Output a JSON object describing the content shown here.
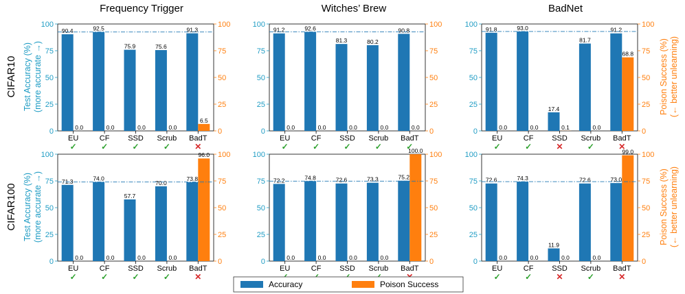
{
  "columns": [
    "Frequency Trigger",
    "Witches’ Brew",
    "BadNet"
  ],
  "rows": [
    "CIFAR10",
    "CIFAR100"
  ],
  "left_axis_label": [
    "Test Accuracy (%)",
    "(more accurate →)"
  ],
  "right_axis_label": [
    "Poison Success (%)",
    "(← better unlearning)"
  ],
  "legend": [
    "Accuracy",
    "Poison Success"
  ],
  "colors": {
    "accuracy": "#1f77b4",
    "poison": "#ff7f0e",
    "accent_axis": "#1f9cc4",
    "check": "#2ca02c",
    "cross": "#d62728"
  },
  "chart_data": [
    {
      "type": "bar",
      "title": "Frequency Trigger",
      "row": "CIFAR10",
      "categories": [
        "EU",
        "CF",
        "SSD",
        "Scrub",
        "BadT"
      ],
      "series": [
        {
          "name": "Accuracy",
          "values": [
            90.4,
            92.5,
            75.9,
            75.6,
            91.3
          ]
        },
        {
          "name": "Poison Success",
          "values": [
            0.0,
            0.0,
            0.0,
            0.0,
            6.5
          ]
        }
      ],
      "status": [
        "check",
        "check",
        "check",
        "check",
        "cross"
      ],
      "ylim": [
        0,
        100
      ],
      "yticks": [
        0,
        25,
        50,
        75,
        100
      ],
      "reference_line": 92.5,
      "ylabel": "Test Accuracy (%) (more accurate →)",
      "y2label": ""
    },
    {
      "type": "bar",
      "title": "Witches’ Brew",
      "row": "CIFAR10",
      "categories": [
        "EU",
        "CF",
        "SSD",
        "Scrub",
        "BadT"
      ],
      "series": [
        {
          "name": "Accuracy",
          "values": [
            91.2,
            92.6,
            81.3,
            80.2,
            90.8
          ]
        },
        {
          "name": "Poison Success",
          "values": [
            0.0,
            0.0,
            0.0,
            0.0,
            0.0
          ]
        }
      ],
      "status": [
        "check",
        "check",
        "check",
        "check",
        "check"
      ],
      "ylim": [
        0,
        100
      ],
      "yticks": [
        0,
        25,
        50,
        75,
        100
      ],
      "reference_line": 92.6
    },
    {
      "type": "bar",
      "title": "BadNet",
      "row": "CIFAR10",
      "categories": [
        "EU",
        "CF",
        "SSD",
        "Scrub",
        "BadT"
      ],
      "series": [
        {
          "name": "Accuracy",
          "values": [
            91.8,
            93.0,
            17.4,
            81.7,
            91.2
          ]
        },
        {
          "name": "Poison Success",
          "values": [
            0.0,
            0.0,
            0.1,
            0.0,
            68.8
          ]
        }
      ],
      "status": [
        "check",
        "check",
        "cross",
        "check",
        "cross"
      ],
      "ylim": [
        0,
        100
      ],
      "yticks": [
        0,
        25,
        50,
        75,
        100
      ],
      "reference_line": 93.0,
      "y2label": "Poison Success (%) (← better unlearning)"
    },
    {
      "type": "bar",
      "title": "",
      "row": "CIFAR100",
      "categories": [
        "EU",
        "CF",
        "SSD",
        "Scrub",
        "BadT"
      ],
      "series": [
        {
          "name": "Accuracy",
          "values": [
            71.3,
            74.0,
            57.7,
            70.0,
            73.8
          ]
        },
        {
          "name": "Poison Success",
          "values": [
            0.0,
            0.0,
            0.0,
            0.0,
            96.0
          ]
        }
      ],
      "status": [
        "check",
        "check",
        "check",
        "check",
        "cross"
      ],
      "ylim": [
        0,
        100
      ],
      "yticks": [
        0,
        25,
        50,
        75,
        100
      ],
      "reference_line": 74.0,
      "ylabel": "Test Accuracy (%) (more accurate →)"
    },
    {
      "type": "bar",
      "title": "",
      "row": "CIFAR100",
      "categories": [
        "EU",
        "CF",
        "SSD",
        "Scrub",
        "BadT"
      ],
      "series": [
        {
          "name": "Accuracy",
          "values": [
            72.2,
            74.8,
            72.6,
            73.3,
            75.2
          ]
        },
        {
          "name": "Poison Success",
          "values": [
            0.0,
            0.0,
            0.0,
            0.0,
            100.0
          ]
        }
      ],
      "status": [
        "check",
        "check",
        "check",
        "check",
        "cross"
      ],
      "ylim": [
        0,
        100
      ],
      "yticks": [
        0,
        25,
        50,
        75,
        100
      ],
      "reference_line": 74.8
    },
    {
      "type": "bar",
      "title": "",
      "row": "CIFAR100",
      "categories": [
        "EU",
        "CF",
        "SSD",
        "Scrub",
        "BadT"
      ],
      "series": [
        {
          "name": "Accuracy",
          "values": [
            72.6,
            74.3,
            11.9,
            72.6,
            73.0
          ]
        },
        {
          "name": "Poison Success",
          "values": [
            0.0,
            0.0,
            0.0,
            0.0,
            99.0
          ]
        }
      ],
      "status": [
        "check",
        "check",
        "cross",
        "check",
        "cross"
      ],
      "ylim": [
        0,
        100
      ],
      "yticks": [
        0,
        25,
        50,
        75,
        100
      ],
      "reference_line": 74.3,
      "y2label": "Poison Success (%) (← better unlearning)"
    }
  ]
}
